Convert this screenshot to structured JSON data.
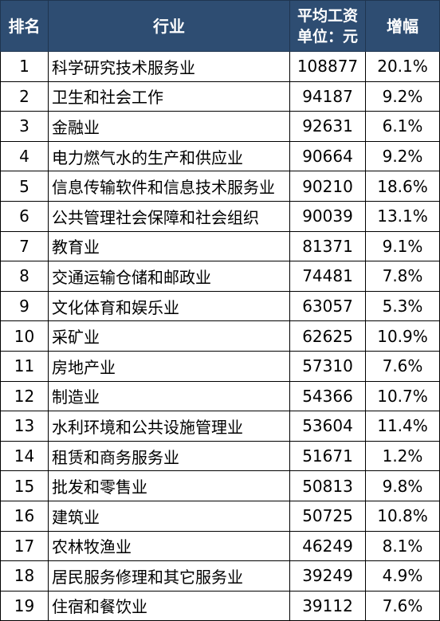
{
  "header": {
    "rank": "排名",
    "industry": "行业",
    "wage_line1": "平均工资",
    "wage_line2": "单位：元",
    "growth": "增幅"
  },
  "rows": [
    {
      "rank": "1",
      "industry": "科学研究技术服务业",
      "wage": "108877",
      "growth": "20.1%"
    },
    {
      "rank": "2",
      "industry": "卫生和社会工作",
      "wage": "94187",
      "growth": "9.2%"
    },
    {
      "rank": "3",
      "industry": "金融业",
      "wage": "92631",
      "growth": "6.1%"
    },
    {
      "rank": "4",
      "industry": "电力燃气水的生产和供应业",
      "wage": "90664",
      "growth": "9.2%"
    },
    {
      "rank": "5",
      "industry": "信息传输软件和信息技术服务业",
      "wage": "90210",
      "growth": "18.6%"
    },
    {
      "rank": "6",
      "industry": "公共管理社会保障和社会组织",
      "wage": "90039",
      "growth": "13.1%"
    },
    {
      "rank": "7",
      "industry": "教育业",
      "wage": "81371",
      "growth": "9.1%"
    },
    {
      "rank": "8",
      "industry": "交通运输仓储和邮政业",
      "wage": "74481",
      "growth": "7.8%"
    },
    {
      "rank": "9",
      "industry": "文化体育和娱乐业",
      "wage": "63057",
      "growth": "5.3%"
    },
    {
      "rank": "10",
      "industry": "采矿业",
      "wage": "62625",
      "growth": "10.9%"
    },
    {
      "rank": "11",
      "industry": "房地产业",
      "wage": "57310",
      "growth": "7.6%"
    },
    {
      "rank": "12",
      "industry": "制造业",
      "wage": "54366",
      "growth": "10.7%"
    },
    {
      "rank": "13",
      "industry": "水利环境和公共设施管理业",
      "wage": "53604",
      "growth": "11.4%"
    },
    {
      "rank": "14",
      "industry": "租赁和商务服务业",
      "wage": "51671",
      "growth": "1.2%"
    },
    {
      "rank": "15",
      "industry": "批发和零售业",
      "wage": "50813",
      "growth": "9.8%"
    },
    {
      "rank": "16",
      "industry": "建筑业",
      "wage": "50725",
      "growth": "10.8%"
    },
    {
      "rank": "17",
      "industry": "农林牧渔业",
      "wage": "46249",
      "growth": "8.1%"
    },
    {
      "rank": "18",
      "industry": "居民服务修理和其它服务业",
      "wage": "39249",
      "growth": "4.9%"
    },
    {
      "rank": "19",
      "industry": "住宿和餐饮业",
      "wage": "39112",
      "growth": "7.6%"
    }
  ]
}
